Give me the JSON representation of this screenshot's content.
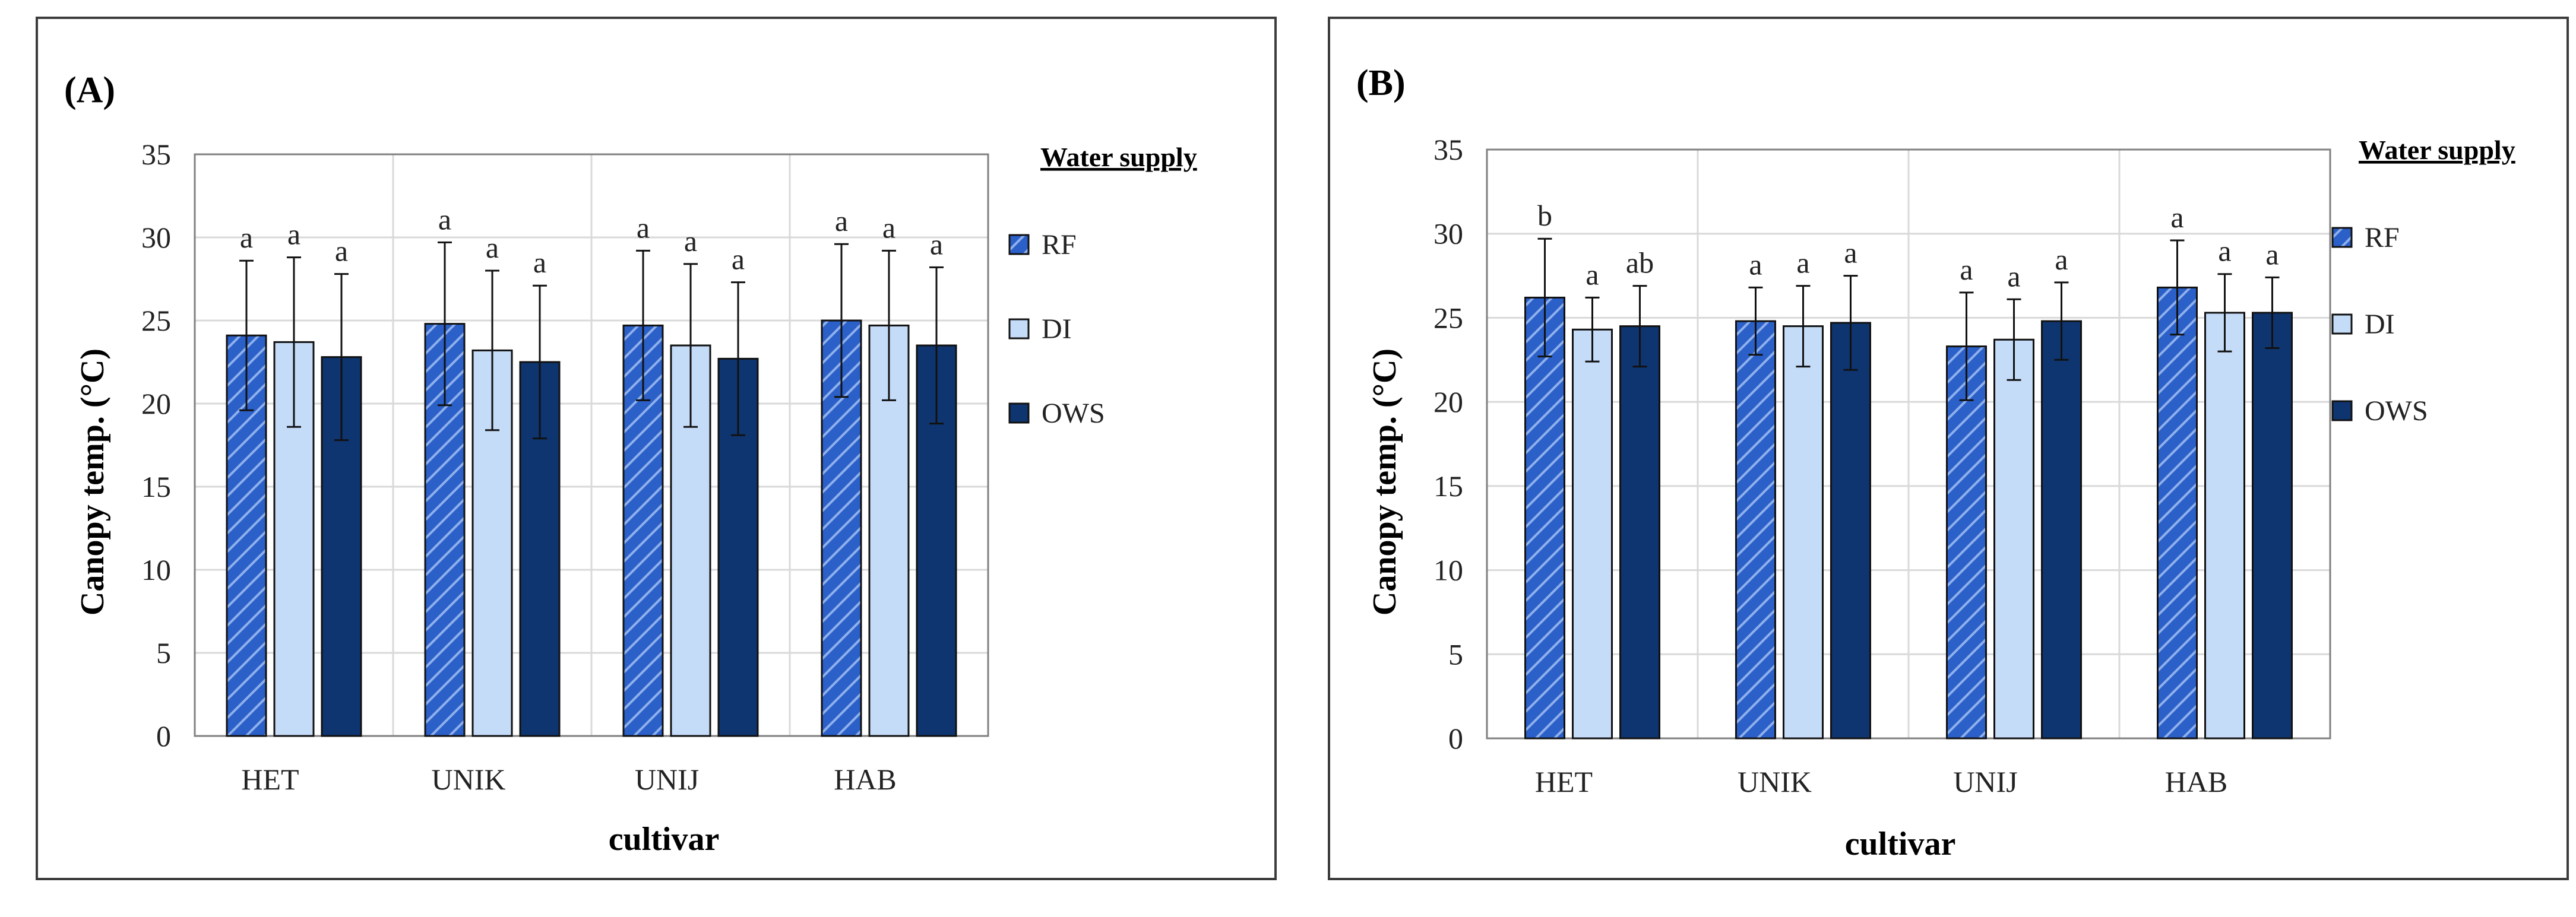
{
  "chart_data": [
    {
      "type": "bar",
      "panel_label": "(A)",
      "xlabel": "cultivar",
      "ylabel": "Canopy temp. (°C)",
      "ylim": [
        0,
        35
      ],
      "yticks": [
        "0",
        "5",
        "10",
        "15",
        "20",
        "25",
        "30",
        "35"
      ],
      "categories": [
        "HET",
        "UNIK",
        "UNIJ",
        "HAB"
      ],
      "legend_title": "Water supply",
      "legend_position": "right",
      "series": [
        {
          "name": "RF",
          "values": [
            24.1,
            24.8,
            24.7,
            25.0
          ],
          "errors": [
            4.5,
            4.9,
            4.5,
            4.6
          ],
          "labels": [
            "a",
            "a",
            "a",
            "a"
          ]
        },
        {
          "name": "DI",
          "values": [
            23.7,
            23.2,
            23.5,
            24.7
          ],
          "errors": [
            5.1,
            4.8,
            4.9,
            4.5
          ],
          "labels": [
            "a",
            "a",
            "a",
            "a"
          ]
        },
        {
          "name": "OWS",
          "values": [
            22.8,
            22.5,
            22.7,
            23.5
          ],
          "errors": [
            5.0,
            4.6,
            4.6,
            4.7
          ],
          "labels": [
            "a",
            "a",
            "a",
            "a"
          ]
        }
      ]
    },
    {
      "type": "bar",
      "panel_label": "(B)",
      "xlabel": "cultivar",
      "ylabel": "Canopy temp. (°C)",
      "ylim": [
        0,
        35
      ],
      "yticks": [
        "0",
        "5",
        "10",
        "15",
        "20",
        "25",
        "30",
        "35"
      ],
      "categories": [
        "HET",
        "UNIK",
        "UNIJ",
        "HAB"
      ],
      "legend_title": "Water supply",
      "legend_position": "right",
      "series": [
        {
          "name": "RF",
          "values": [
            26.2,
            24.8,
            23.3,
            26.8
          ],
          "errors": [
            3.5,
            2.0,
            3.2,
            2.8
          ],
          "labels": [
            "b",
            "a",
            "a",
            "a"
          ]
        },
        {
          "name": "DI",
          "values": [
            24.3,
            24.5,
            23.7,
            25.3
          ],
          "errors": [
            1.9,
            2.4,
            2.4,
            2.3
          ],
          "labels": [
            "a",
            "a",
            "a",
            "a"
          ]
        },
        {
          "name": "OWS",
          "values": [
            24.5,
            24.7,
            24.8,
            25.3
          ],
          "errors": [
            2.4,
            2.8,
            2.3,
            2.1
          ],
          "labels": [
            "ab",
            "a",
            "a",
            "a"
          ]
        }
      ]
    }
  ],
  "colors": {
    "RF": "#2b60c8",
    "RF_hatch": "#8fb0ec",
    "DI": "#c5dcf8",
    "OWS": "#0e3570",
    "gridline": "#d9d9d9",
    "plot_border": "#808080"
  }
}
